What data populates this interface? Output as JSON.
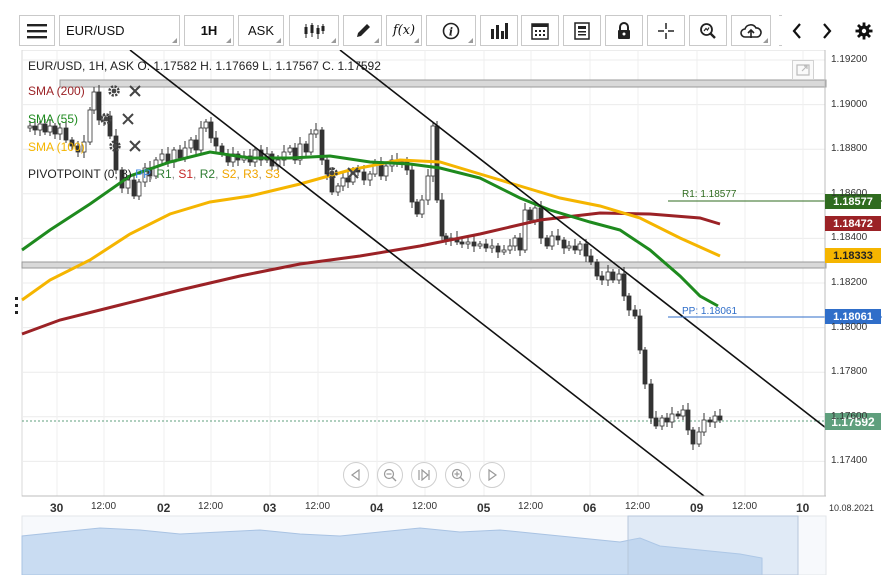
{
  "toolbar": {
    "symbol": "EUR/USD",
    "timeframe": "1H",
    "price_type": "ASK",
    "icons": [
      "menu-icon",
      "candlestick-icon",
      "pencil-icon",
      "function-icon",
      "info-icon",
      "bar-chart-icon",
      "calendar-icon",
      "news-icon",
      "lock-icon",
      "crosshair-icon",
      "zoom-icon",
      "cloud-upload-icon",
      "chevron-left-icon",
      "chevron-right-icon",
      "gear-icon"
    ]
  },
  "ohlc_legend": "EUR/USD, 1H, ASK   O. 1.17582 H. 1.17669 L. 1.17567 C. 1.17592",
  "indicators": [
    {
      "label": "SMA (200)",
      "color": "#9b2226"
    },
    {
      "label": "SMA (55)",
      "color": "#1e8a1e"
    },
    {
      "label": "SMA (100)",
      "color": "#f5b500"
    }
  ],
  "pivot": {
    "prefix": "PIVOTPOINT (0, 8)",
    "parts": [
      {
        "text": "PP",
        "color": "#3c86e0"
      },
      {
        "text": "R1",
        "color": "#2e7d32"
      },
      {
        "text": "S1",
        "color": "#c62828"
      },
      {
        "text": "R2",
        "color": "#2e7d32"
      },
      {
        "text": "S2",
        "color": "#f0a500"
      },
      {
        "text": "R3",
        "color": "#f0a500"
      },
      {
        "text": "S3",
        "color": "#f0a500"
      }
    ]
  },
  "price_axis": [
    "1.19200",
    "1.19000",
    "1.18800",
    "1.18600",
    "1.18400",
    "1.18200",
    "1.18000",
    "1.17800",
    "1.17600",
    "1.17400"
  ],
  "price_tags": [
    {
      "value": "1.18577",
      "color": "#2f6b1f"
    },
    {
      "value": "1.18472",
      "color": "#9b2226"
    },
    {
      "value": "1.18333",
      "color": "#f5b500"
    },
    {
      "value": "1.18061",
      "color": "#2f6ec9"
    },
    {
      "value": "1.17592",
      "color": "#5f9f7d"
    }
  ],
  "level_labels": [
    {
      "text": "R1: 1.18577",
      "color": "#2f6b1f"
    },
    {
      "text": "PP: 1.18061",
      "color": "#2f6ec9"
    }
  ],
  "time_axis": [
    "30",
    "12:00",
    "02",
    "12:00",
    "03",
    "12:00",
    "04",
    "12:00",
    "05",
    "12:00",
    "06",
    "12:00",
    "09",
    "12:00",
    "10",
    "10.08.2021"
  ]
}
